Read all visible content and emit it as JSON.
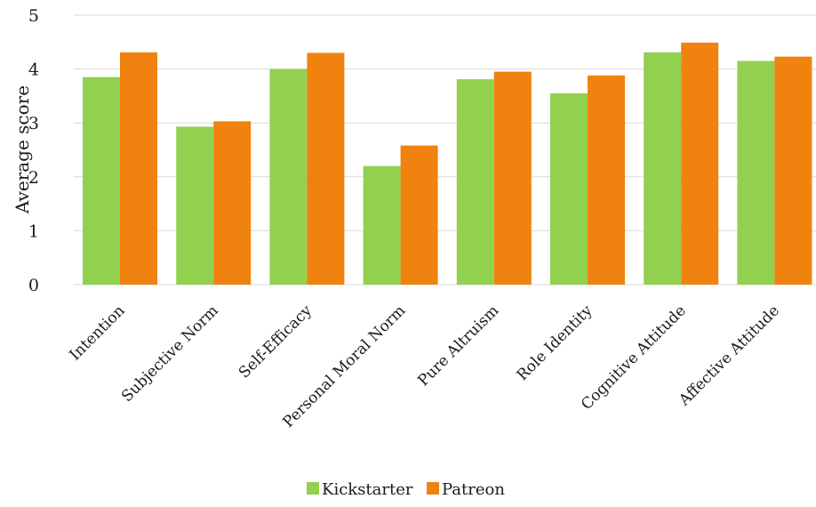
{
  "chart_data": {
    "type": "bar",
    "title": "",
    "xlabel": "",
    "ylabel": "Average score",
    "ylim": [
      0,
      5
    ],
    "yticks": [
      0,
      1,
      2,
      3,
      4,
      5
    ],
    "grid": true,
    "legend_position": "bottom",
    "categories": [
      "Intention",
      "Subjective Norm",
      "Self-Efficacy",
      "Personal Moral Norm",
      "Pure Altruism",
      "Role Identity",
      "Cognitive Attitude",
      "Affective Attitude"
    ],
    "series": [
      {
        "name": "Kickstarter",
        "color": "#92d050",
        "values": [
          3.85,
          2.93,
          4.0,
          2.2,
          3.81,
          3.55,
          4.31,
          4.15
        ]
      },
      {
        "name": "Patreon",
        "color": "#f0820f",
        "values": [
          4.31,
          3.03,
          4.3,
          2.58,
          3.95,
          3.88,
          4.49,
          4.23
        ]
      }
    ]
  }
}
